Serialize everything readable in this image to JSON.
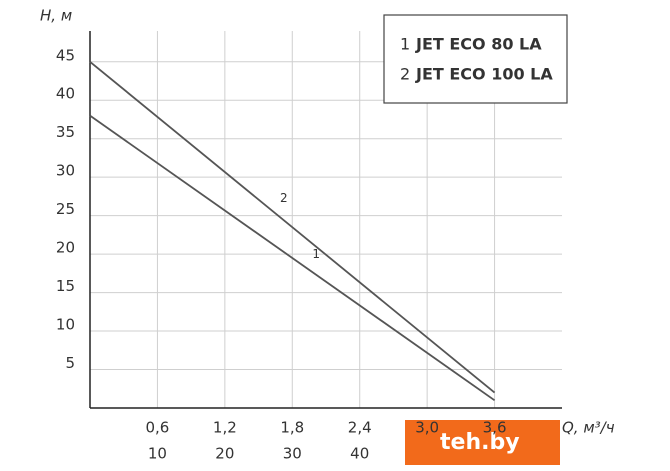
{
  "chart_data": {
    "type": "line",
    "y_label": "H, м",
    "x_label": "Q, м³/ч",
    "x": [
      0,
      3.6
    ],
    "series": [
      {
        "label": "1",
        "name": "JET ECO 80 LA",
        "color": "#555555",
        "values": [
          38,
          1
        ]
      },
      {
        "label": "2",
        "name": "JET ECO 100 LA",
        "color": "#555555",
        "values": [
          45,
          2
        ]
      }
    ],
    "xlim": [
      0,
      4.2
    ],
    "xticks": [
      {
        "value": 0.6,
        "label": "0,6"
      },
      {
        "value": 1.2,
        "label": "1,2"
      },
      {
        "value": 1.8,
        "label": "1,8"
      },
      {
        "value": 2.4,
        "label": "2,4"
      },
      {
        "value": 3.0,
        "label": "3,0"
      },
      {
        "value": 3.6,
        "label": "3,6"
      }
    ],
    "x2lim": [
      0,
      70
    ],
    "x2ticks": [
      10,
      20,
      30,
      40
    ],
    "ylim": [
      0,
      49
    ],
    "yticks": [
      5,
      10,
      15,
      20,
      25,
      30,
      35,
      40,
      45
    ],
    "grid": true
  },
  "watermark": "teh.by"
}
